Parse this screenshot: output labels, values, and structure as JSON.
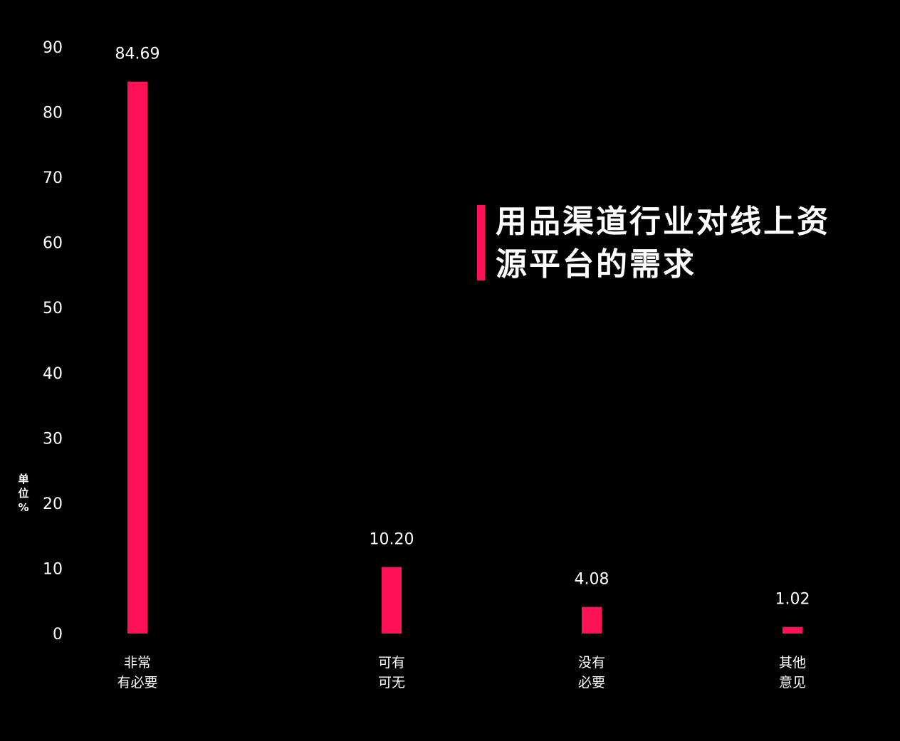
{
  "chart_data": {
    "type": "bar",
    "title": "用品渠道行业对线上资源平台的需求",
    "ylabel": "单位%",
    "ylim": [
      0,
      90
    ],
    "yticks": [
      0,
      10,
      20,
      30,
      40,
      50,
      60,
      70,
      80,
      90
    ],
    "categories": [
      [
        "非常",
        "有必要"
      ],
      [
        "可有",
        "可无"
      ],
      [
        "没有",
        "必要"
      ],
      [
        "其他",
        "意见"
      ]
    ],
    "values": [
      84.69,
      10.2,
      4.08,
      1.02
    ],
    "value_labels": [
      "84.69",
      "10.20",
      "4.08",
      "1.02"
    ],
    "grid": false,
    "legend": "none",
    "bar_color": "#ff1155"
  },
  "colors": {
    "background": "#000000",
    "accent": "#ff1155",
    "text": "#ffffff"
  }
}
